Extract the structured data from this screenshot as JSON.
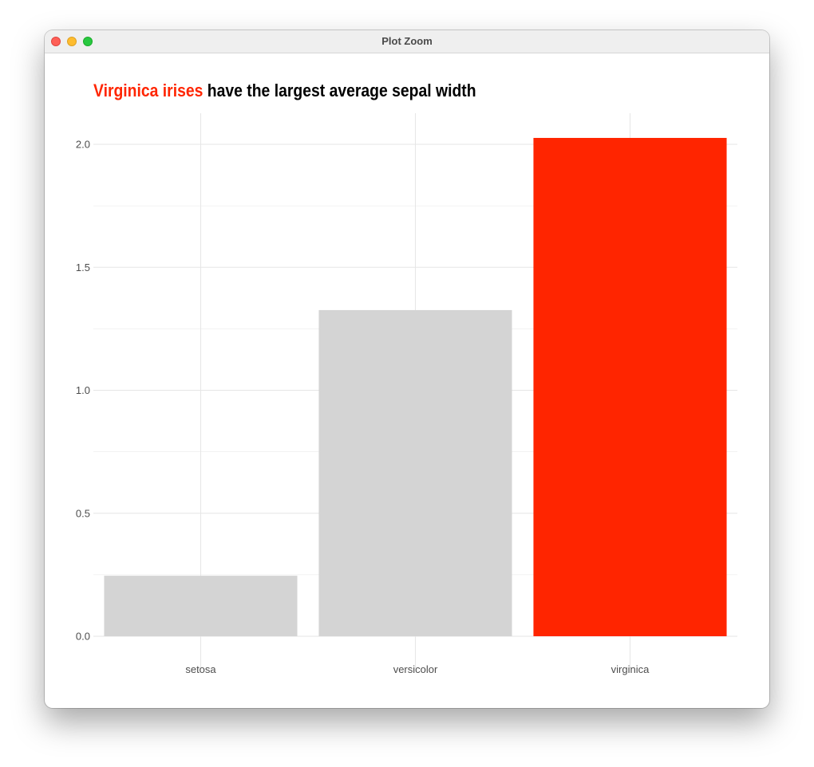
{
  "window": {
    "title": "Plot Zoom"
  },
  "colors": {
    "highlight": "#ff2500",
    "muted": "#d4d4d4",
    "grid": "#e6e6e6",
    "tick_text": "#4d4d4d"
  },
  "chart_data": {
    "type": "bar",
    "title_highlight": "Virginica irises",
    "title_rest": " have the largest average sepal width",
    "categories": [
      "setosa",
      "versicolor",
      "virginica"
    ],
    "values": [
      0.246,
      1.326,
      2.026
    ],
    "bar_colors": [
      "#d4d4d4",
      "#d4d4d4",
      "#ff2500"
    ],
    "ylim": [
      -0.05,
      2.1
    ],
    "yticks": [
      0.0,
      0.5,
      1.0,
      1.5,
      2.0
    ],
    "ytick_labels": [
      "0.0",
      "0.5",
      "1.0",
      "1.5",
      "2.0"
    ],
    "xlabel": "",
    "ylabel": "",
    "grid": true,
    "legend": "none"
  }
}
